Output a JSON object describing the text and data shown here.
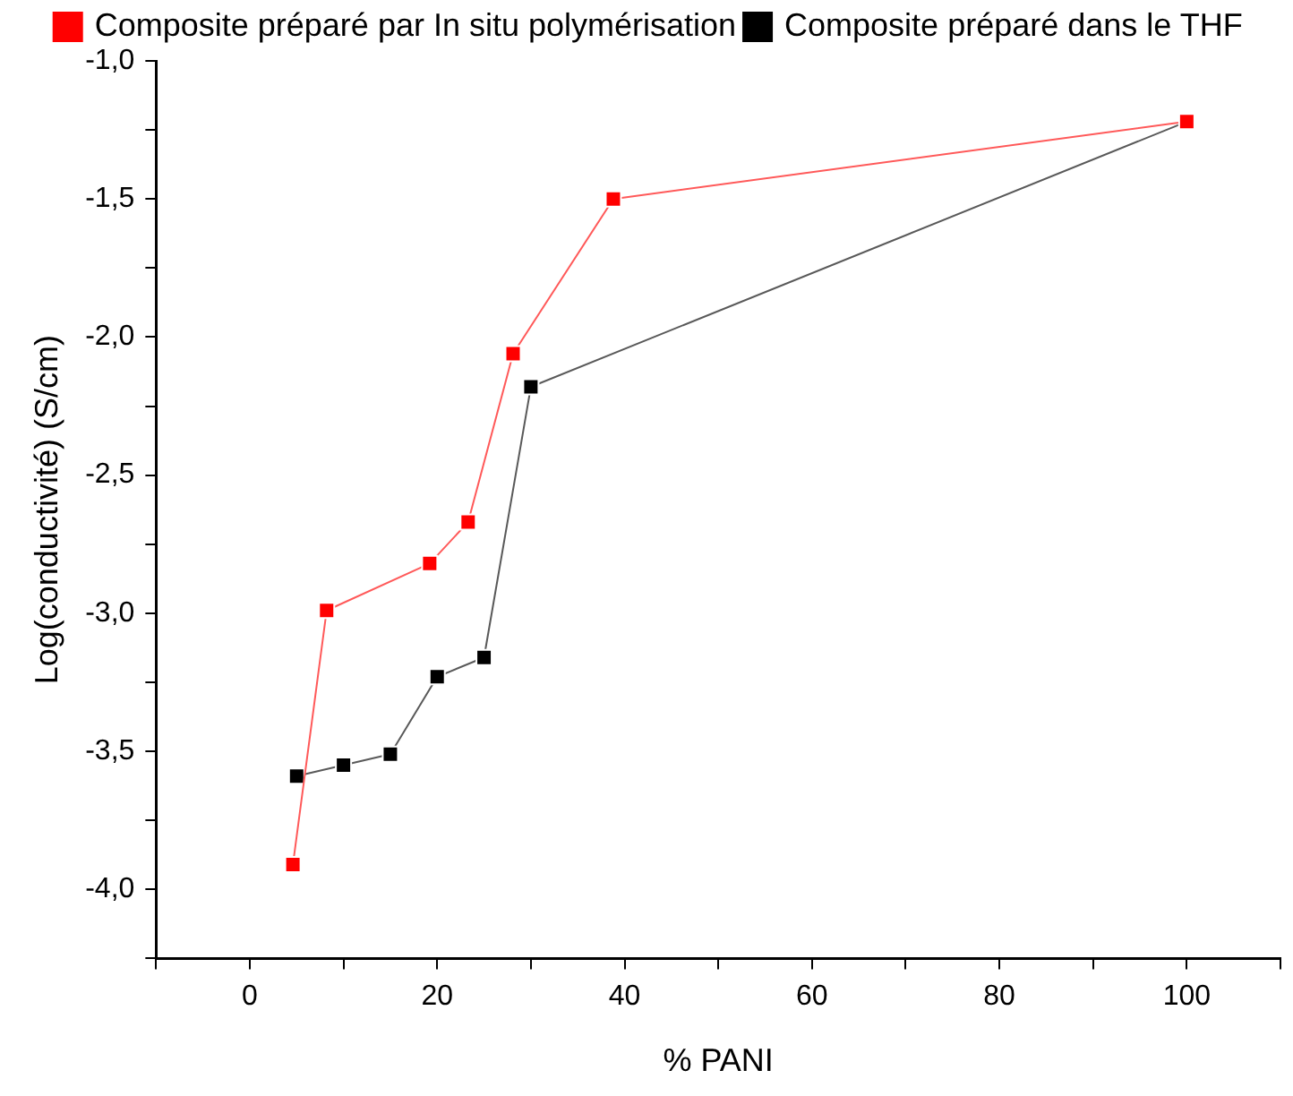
{
  "chart_data": {
    "type": "line",
    "xlabel": "% PANI",
    "ylabel": "Log(conductivité) (S/cm)",
    "xlim": [
      -10,
      110
    ],
    "xticks": [
      {
        "value": -10,
        "label": null
      },
      0,
      {
        "value": 10,
        "label": null
      },
      20,
      {
        "value": 30,
        "label": null
      },
      40,
      {
        "value": 50,
        "label": null
      },
      60,
      {
        "value": 70,
        "label": null
      },
      80,
      {
        "value": 90,
        "label": null
      },
      100,
      {
        "value": 110,
        "label": null
      }
    ],
    "ylim": [
      -4.25,
      -1.0
    ],
    "yticks": [
      {
        "value": -4.25,
        "label": null
      },
      {
        "value": -4.0,
        "label": "-4,0"
      },
      {
        "value": -3.75,
        "label": null
      },
      {
        "value": -3.5,
        "label": "-3,5"
      },
      {
        "value": -3.25,
        "label": null
      },
      {
        "value": -3.0,
        "label": "-3,0"
      },
      {
        "value": -2.75,
        "label": null
      },
      {
        "value": -2.5,
        "label": "-2,5"
      },
      {
        "value": -2.25,
        "label": null
      },
      {
        "value": -2.0,
        "label": "-2,0"
      },
      {
        "value": -1.75,
        "label": null
      },
      {
        "value": -1.5,
        "label": "-1,5"
      },
      {
        "value": -1.25,
        "label": null
      },
      {
        "value": -1.0,
        "label": "-1,0"
      }
    ],
    "grid": false,
    "legend": "top",
    "marker": "square",
    "line_style": "solid",
    "series": [
      {
        "name": "Composite préparé dans le THF",
        "color": "#000000",
        "x": [
          5,
          10,
          15,
          20,
          25,
          30,
          100
        ],
        "values": [
          -3.59,
          -3.55,
          -3.51,
          -3.23,
          -3.16,
          -2.18,
          -1.22
        ]
      },
      {
        "name": "Composite préparé par In situ polymérisation",
        "color": "#ff0000",
        "x": [
          4.6,
          8.2,
          19.2,
          23.3,
          28.1,
          38.8,
          100
        ],
        "values": [
          -3.91,
          -2.99,
          -2.82,
          -2.67,
          -2.06,
          -1.5,
          -1.22
        ]
      }
    ]
  }
}
